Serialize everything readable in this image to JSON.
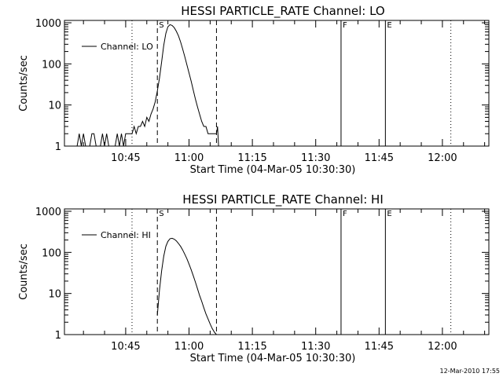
{
  "footer": {
    "timestamp": "12-Mar-2010 17:55"
  },
  "chart_data": [
    {
      "type": "line",
      "title": "HESSI PARTICLE_RATE Channel: LO",
      "xlabel": "Start Time (04-Mar-05 10:30:30)",
      "ylabel": "Counts/sec",
      "y_scale": "log",
      "ylim": [
        1,
        1000
      ],
      "xlim": [
        "10:30:30",
        "12:11:00"
      ],
      "x_ticks": [
        "10:45",
        "11:00",
        "11:15",
        "11:30",
        "11:45",
        "12:00"
      ],
      "y_ticks": [
        "1",
        "10",
        "100",
        "1000"
      ],
      "legend": {
        "position": "top-left",
        "label": "Channel: LO"
      },
      "vertical_markers": [
        {
          "time": "10:46:30",
          "style": "dotted",
          "label": ""
        },
        {
          "time": "10:52:30",
          "style": "dashed",
          "label": "S"
        },
        {
          "time": "11:06:30",
          "style": "dashed",
          "label": ""
        },
        {
          "time": "11:36:00",
          "style": "solid",
          "label": "F"
        },
        {
          "time": "11:46:30",
          "style": "solid",
          "label": "E"
        },
        {
          "time": "12:02:00",
          "style": "dotted",
          "label": ""
        }
      ],
      "series": [
        {
          "name": "Channel: LO",
          "x": [
            "10:33:30",
            "10:34:00",
            "10:34:30",
            "10:35:00",
            "10:35:30",
            "10:36:00",
            "10:36:30",
            "10:37:00",
            "10:37:30",
            "10:38:00",
            "10:38:30",
            "10:39:00",
            "10:39:30",
            "10:40:00",
            "10:40:30",
            "10:41:00",
            "10:41:30",
            "10:42:00",
            "10:42:30",
            "10:43:00",
            "10:43:30",
            "10:44:00",
            "10:44:30",
            "10:45:00",
            "10:45:30",
            "10:46:00",
            "10:46:30",
            "10:47:00",
            "10:47:30",
            "10:48:00",
            "10:48:30",
            "10:49:00",
            "10:49:30",
            "10:50:00",
            "10:50:30",
            "10:51:00",
            "10:51:30",
            "10:52:00",
            "10:52:30",
            "10:53:00",
            "10:53:30",
            "10:54:00",
            "10:54:30",
            "10:55:00",
            "10:55:30",
            "10:56:00",
            "10:56:30",
            "10:57:00",
            "10:57:30",
            "10:58:00",
            "10:58:30",
            "10:59:00",
            "10:59:30",
            "11:00:00",
            "11:00:30",
            "11:01:00",
            "11:01:30",
            "11:02:00",
            "11:02:30",
            "11:03:00",
            "11:03:30",
            "11:04:00",
            "11:04:30",
            "11:05:00",
            "11:05:30",
            "11:06:00",
            "11:06:30",
            "11:06:45",
            "11:07:00"
          ],
          "y": [
            1,
            2,
            1,
            2,
            1,
            1,
            1,
            2,
            2,
            1,
            1,
            1,
            2,
            1,
            2,
            1,
            1,
            1,
            1,
            2,
            1,
            2,
            1,
            2,
            2,
            2,
            2,
            3,
            2,
            3,
            3,
            4,
            3,
            5,
            4,
            6,
            8,
            12,
            22,
            45,
            110,
            280,
            550,
            800,
            900,
            860,
            760,
            620,
            480,
            340,
            230,
            150,
            95,
            60,
            38,
            23,
            14,
            9,
            6,
            4,
            3,
            3,
            2,
            2,
            2,
            2,
            2,
            3,
            1
          ]
        }
      ]
    },
    {
      "type": "line",
      "title": "HESSI PARTICLE_RATE Channel: HI",
      "xlabel": "Start Time (04-Mar-05 10:30:30)",
      "ylabel": "Counts/sec",
      "y_scale": "log",
      "ylim": [
        1,
        1000
      ],
      "xlim": [
        "10:30:30",
        "12:11:00"
      ],
      "x_ticks": [
        "10:45",
        "11:00",
        "11:15",
        "11:30",
        "11:45",
        "12:00"
      ],
      "y_ticks": [
        "1",
        "10",
        "100",
        "1000"
      ],
      "legend": {
        "position": "top-left",
        "label": "Channel: HI"
      },
      "vertical_markers": [
        {
          "time": "10:46:30",
          "style": "dotted",
          "label": ""
        },
        {
          "time": "10:52:30",
          "style": "dashed",
          "label": "S"
        },
        {
          "time": "11:06:30",
          "style": "dashed",
          "label": ""
        },
        {
          "time": "11:36:00",
          "style": "solid",
          "label": "F"
        },
        {
          "time": "11:46:30",
          "style": "solid",
          "label": "E"
        },
        {
          "time": "12:02:00",
          "style": "dotted",
          "label": ""
        }
      ],
      "series": [
        {
          "name": "Channel: HI",
          "x": [
            "10:52:30",
            "10:53:00",
            "10:53:30",
            "10:54:00",
            "10:54:30",
            "10:55:00",
            "10:55:30",
            "10:56:00",
            "10:56:30",
            "10:57:00",
            "10:57:30",
            "10:58:00",
            "10:58:30",
            "10:59:00",
            "10:59:30",
            "11:00:00",
            "11:00:30",
            "11:01:00",
            "11:01:30",
            "11:02:00",
            "11:02:30",
            "11:03:00",
            "11:03:30",
            "11:04:00",
            "11:04:30",
            "11:05:00",
            "11:05:30",
            "11:06:00",
            "11:06:30"
          ],
          "y": [
            3,
            12,
            35,
            80,
            140,
            185,
            215,
            220,
            210,
            190,
            165,
            140,
            115,
            90,
            70,
            52,
            38,
            27,
            19,
            13,
            9,
            6.5,
            4.5,
            3.2,
            2.4,
            1.8,
            1.4,
            1.15,
            1
          ]
        }
      ]
    }
  ]
}
